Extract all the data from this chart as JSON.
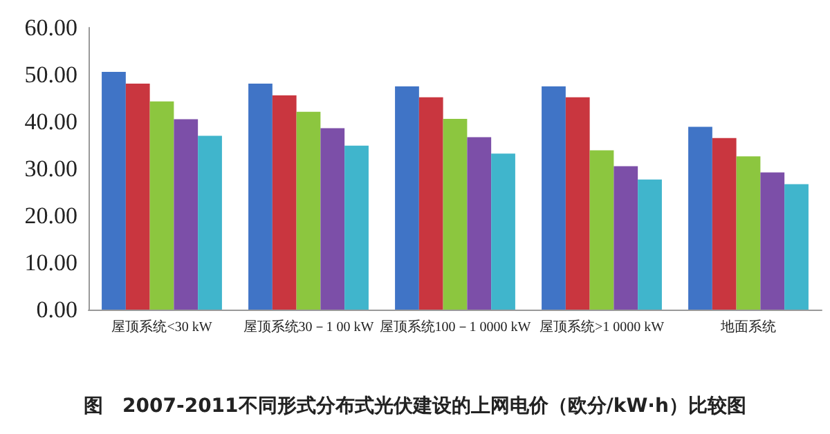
{
  "chart_data": {
    "type": "bar",
    "title": "图　2007-2011不同形式分布式光伏建设的上网电价（欧分/kW·h）比较图",
    "categories": [
      "屋顶系统<30 kW",
      "屋顶系统30－1 00 kW",
      "屋顶系统100－1 0000 kW",
      "屋顶系统>1 0000 kW",
      "地面系统"
    ],
    "series": [
      {
        "color": "#4074c6",
        "values": [
          50.6,
          48.1,
          47.5,
          47.5,
          38.9
        ]
      },
      {
        "color": "#c9363f",
        "values": [
          48.1,
          45.6,
          45.2,
          45.2,
          36.5
        ]
      },
      {
        "color": "#8cc63f",
        "values": [
          44.3,
          42.1,
          40.6,
          33.9,
          32.6
        ]
      },
      {
        "color": "#7c4fa8",
        "values": [
          40.5,
          38.6,
          36.7,
          30.5,
          29.2
        ]
      },
      {
        "color": "#40b5cc",
        "values": [
          37.0,
          34.9,
          33.2,
          27.7,
          26.7
        ]
      }
    ],
    "ylim": [
      0,
      60
    ],
    "yticks": [
      {
        "value": 0,
        "label": "0.00"
      },
      {
        "value": 10,
        "label": "10.00"
      },
      {
        "value": 20,
        "label": "20.00"
      },
      {
        "value": 30,
        "label": "30.00"
      },
      {
        "value": 40,
        "label": "40.00"
      },
      {
        "value": 50,
        "label": "50.00"
      },
      {
        "value": 60,
        "label": "60.00"
      }
    ],
    "grid": false
  }
}
